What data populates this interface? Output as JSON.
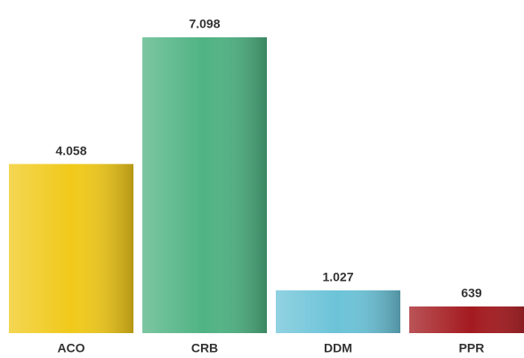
{
  "chart_data": {
    "type": "bar",
    "categories": [
      "ACO",
      "CRB",
      "DDM",
      "PPR"
    ],
    "values": [
      4058,
      7098,
      1027,
      639
    ],
    "value_labels": [
      "4.058",
      "7.098",
      "1.027",
      "639"
    ],
    "colors": [
      "#f0c91a",
      "#4fb383",
      "#6cc3d8",
      "#a31a1f"
    ]
  }
}
